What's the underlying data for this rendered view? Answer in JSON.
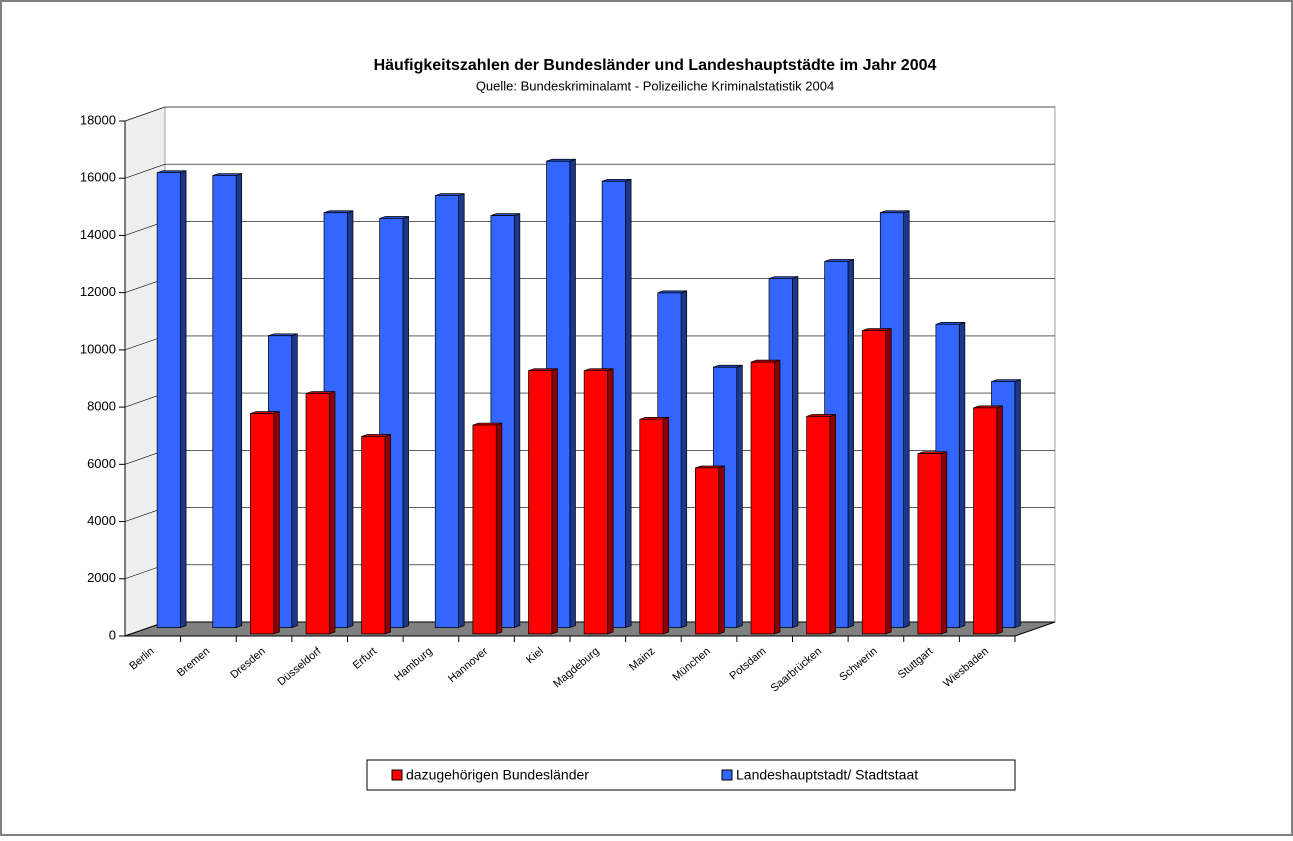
{
  "chart_data": {
    "type": "bar3d",
    "title": "Häufigkeitszahlen der Bundesländer und Landeshauptstädte im Jahr 2004",
    "subtitle": "Quelle: Bundeskriminalamt - Polizeiliche Kriminalstatistik 2004",
    "categories": [
      "Berlin",
      "Bremen",
      "Dresden",
      "Düsseldorf",
      "Erfurt",
      "Hamburg",
      "Hannover",
      "Kiel",
      "Magdeburg",
      "Mainz",
      "München",
      "Potsdam",
      "Saarbrücken",
      "Schwerin",
      "Stuttgart",
      "Wiesbaden"
    ],
    "series": [
      {
        "name": "dazugehörigen Bundesländer",
        "color": "#ff0000",
        "values": [
          null,
          null,
          7700,
          8400,
          6900,
          null,
          7300,
          9200,
          9200,
          7500,
          5800,
          9500,
          7600,
          10600,
          6300,
          7900
        ]
      },
      {
        "name": "Landeshauptstadt/ Stadtstaat",
        "color": "#3366ff",
        "values": [
          15900,
          15800,
          10200,
          14500,
          14300,
          15100,
          14400,
          16300,
          15600,
          11700,
          9100,
          12200,
          12800,
          14500,
          10600,
          8600
        ]
      }
    ],
    "ylim": [
      0,
      18000
    ],
    "yticks": [
      0,
      2000,
      4000,
      6000,
      8000,
      10000,
      12000,
      14000,
      16000,
      18000
    ],
    "grid": true,
    "legend": "bottom"
  }
}
